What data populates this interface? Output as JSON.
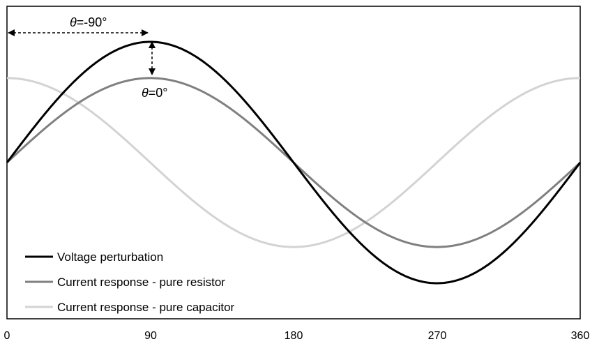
{
  "chart_data": {
    "type": "line",
    "x_range": [
      0,
      360
    ],
    "y_range": [
      -1.1,
      1.1
    ],
    "x_ticks": [
      "0",
      "90",
      "180",
      "270",
      "360"
    ],
    "grid": false,
    "legend_position": "bottom-left",
    "series": [
      {
        "name": "Voltage perturbation",
        "function": "sin",
        "amplitude": 1.0,
        "phase_deg": 0,
        "color": "#000000"
      },
      {
        "name": "Current response - pure resistor",
        "function": "sin",
        "amplitude": 0.7,
        "phase_deg": 0,
        "color": "#808080"
      },
      {
        "name": "Current response - pure capacitor",
        "function": "sin",
        "amplitude": 0.7,
        "phase_deg": 90,
        "color": "#d3d3d3"
      }
    ],
    "annotations": [
      {
        "symbol": "θ",
        "value": "=-90°"
      },
      {
        "symbol": "θ",
        "value": "=0°"
      }
    ]
  }
}
